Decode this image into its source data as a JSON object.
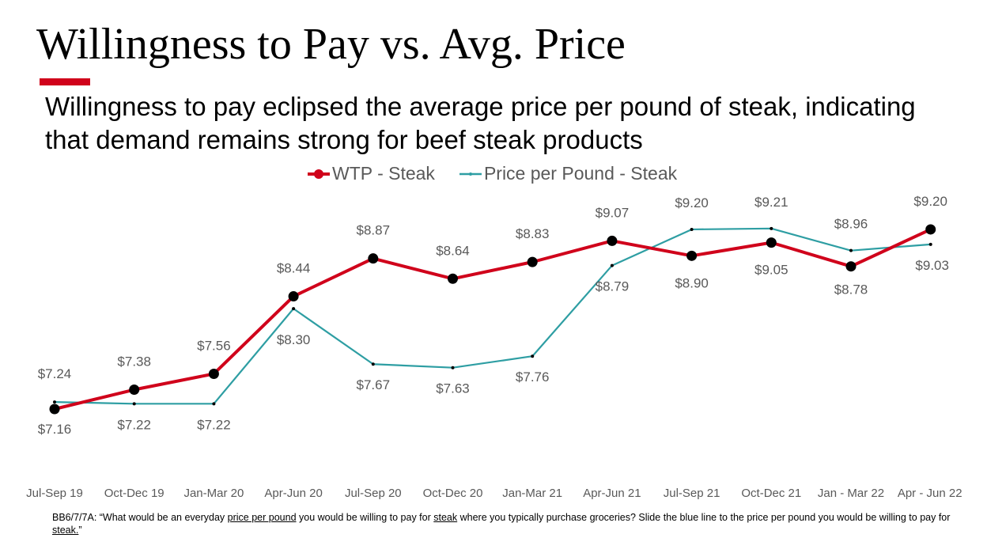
{
  "title": "Willingness to Pay vs. Avg. Price",
  "subtitle": "Willingness to pay eclipsed the average price per pound of steak, indicating that demand remains strong for beef steak products",
  "colors": {
    "accent": "#d0021b",
    "wtp": "#d0021b",
    "price": "#2e9ea3",
    "label": "#595959"
  },
  "chart_data": {
    "type": "line",
    "categories": [
      "Jul-Sep 19",
      "Oct-Dec 19",
      "Jan-Mar 20",
      "Apr-Jun 20",
      "Jul-Sep 20",
      "Oct-Dec 20",
      "Jan-Mar 21",
      "Apr-Jun 21",
      "Jul-Sep 21",
      "Oct-Dec 21",
      "Jan - Mar 22",
      "Apr - Jun 22"
    ],
    "series": [
      {
        "name": "WTP - Steak",
        "values": [
          7.16,
          7.38,
          7.56,
          8.44,
          8.87,
          8.64,
          8.83,
          9.07,
          8.9,
          9.05,
          8.78,
          9.2
        ],
        "labels": [
          "$7.16",
          "$7.38",
          "$7.56",
          "$8.44",
          "$8.87",
          "$8.64",
          "$8.83",
          "$9.07",
          "$8.90",
          "$9.05",
          "$8.78",
          "$9.20"
        ]
      },
      {
        "name": "Price per Pound - Steak",
        "values": [
          7.24,
          7.22,
          7.22,
          8.3,
          7.67,
          7.63,
          7.76,
          8.79,
          9.2,
          9.21,
          8.96,
          9.03
        ],
        "labels": [
          "$7.24",
          "$7.22",
          "$7.22",
          "$8.30",
          "$7.67",
          "$7.63",
          "$7.76",
          "$8.79",
          "$9.20",
          "$9.21",
          "$8.96",
          "$9.03"
        ]
      }
    ],
    "legend": "top",
    "grid": false,
    "y_axis_visible": false
  },
  "footnote": [
    {
      "text": "BB6/7/7A: “What would be an everyday ",
      "u": false
    },
    {
      "text": "price per pound",
      "u": true
    },
    {
      "text": " you would be willing to pay for ",
      "u": false
    },
    {
      "text": "steak",
      "u": true
    },
    {
      "text": " where you typically purchase groceries? Slide the blue line to the price per pound you would be willing to pay for ",
      "u": false
    },
    {
      "text": "steak.",
      "u": true
    },
    {
      "text": "”",
      "u": false
    }
  ]
}
